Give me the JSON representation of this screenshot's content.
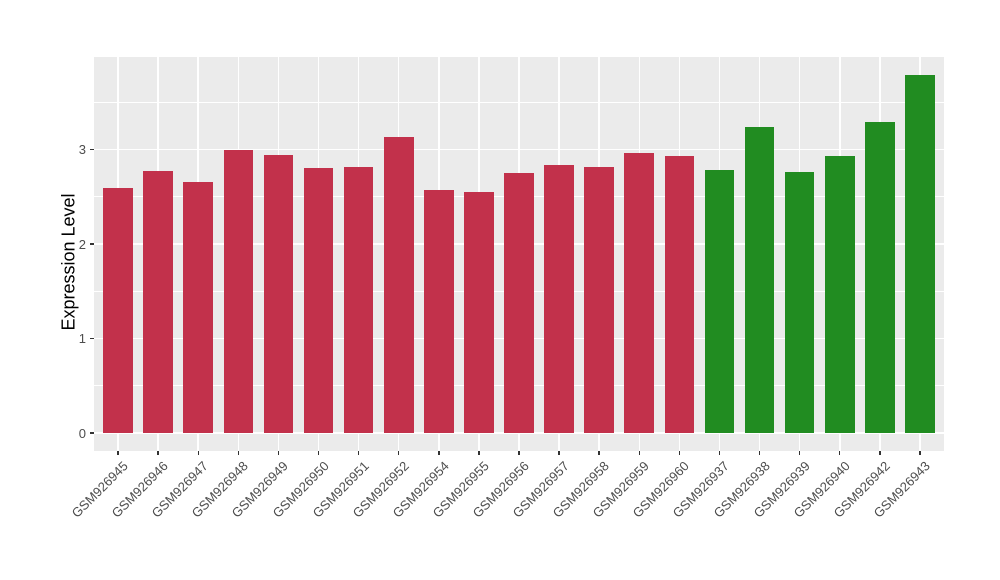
{
  "chart_data": {
    "type": "bar",
    "title": "",
    "xlabel": "",
    "ylabel": "Expression Level",
    "yticks": [
      0,
      1,
      2,
      3
    ],
    "yminor": [
      0.5,
      1.5,
      2.5,
      3.5
    ],
    "ylim": [
      -0.19,
      3.98
    ],
    "grid": "on",
    "legend": "none",
    "colors": {
      "panel_background": "#EBEBEB",
      "gridline": "#FFFFFF",
      "tick_mark": "#333333",
      "tick_label": "#4D4D4D",
      "axis_title": "#000000",
      "group1": "#C2314B",
      "group2": "#218C21"
    },
    "groups": [
      {
        "name": "group-1-red",
        "color": "#C2314B"
      },
      {
        "name": "group-2-green",
        "color": "#218C21"
      }
    ],
    "categories": [
      "GSM926945",
      "GSM926946",
      "GSM926947",
      "GSM926948",
      "GSM926949",
      "GSM926950",
      "GSM926951",
      "GSM926952",
      "GSM926954",
      "GSM926955",
      "GSM926956",
      "GSM926957",
      "GSM926958",
      "GSM926959",
      "GSM926960",
      "GSM926937",
      "GSM926938",
      "GSM926939",
      "GSM926940",
      "GSM926942",
      "GSM926943"
    ],
    "values": [
      2.59,
      2.77,
      2.66,
      3.0,
      2.94,
      2.81,
      2.82,
      3.13,
      2.57,
      2.55,
      2.75,
      2.84,
      2.82,
      2.96,
      2.93,
      2.78,
      3.24,
      2.76,
      2.93,
      3.29,
      3.79
    ],
    "bar_groups": [
      0,
      0,
      0,
      0,
      0,
      0,
      0,
      0,
      0,
      0,
      0,
      0,
      0,
      0,
      0,
      1,
      1,
      1,
      1,
      1,
      1
    ]
  }
}
